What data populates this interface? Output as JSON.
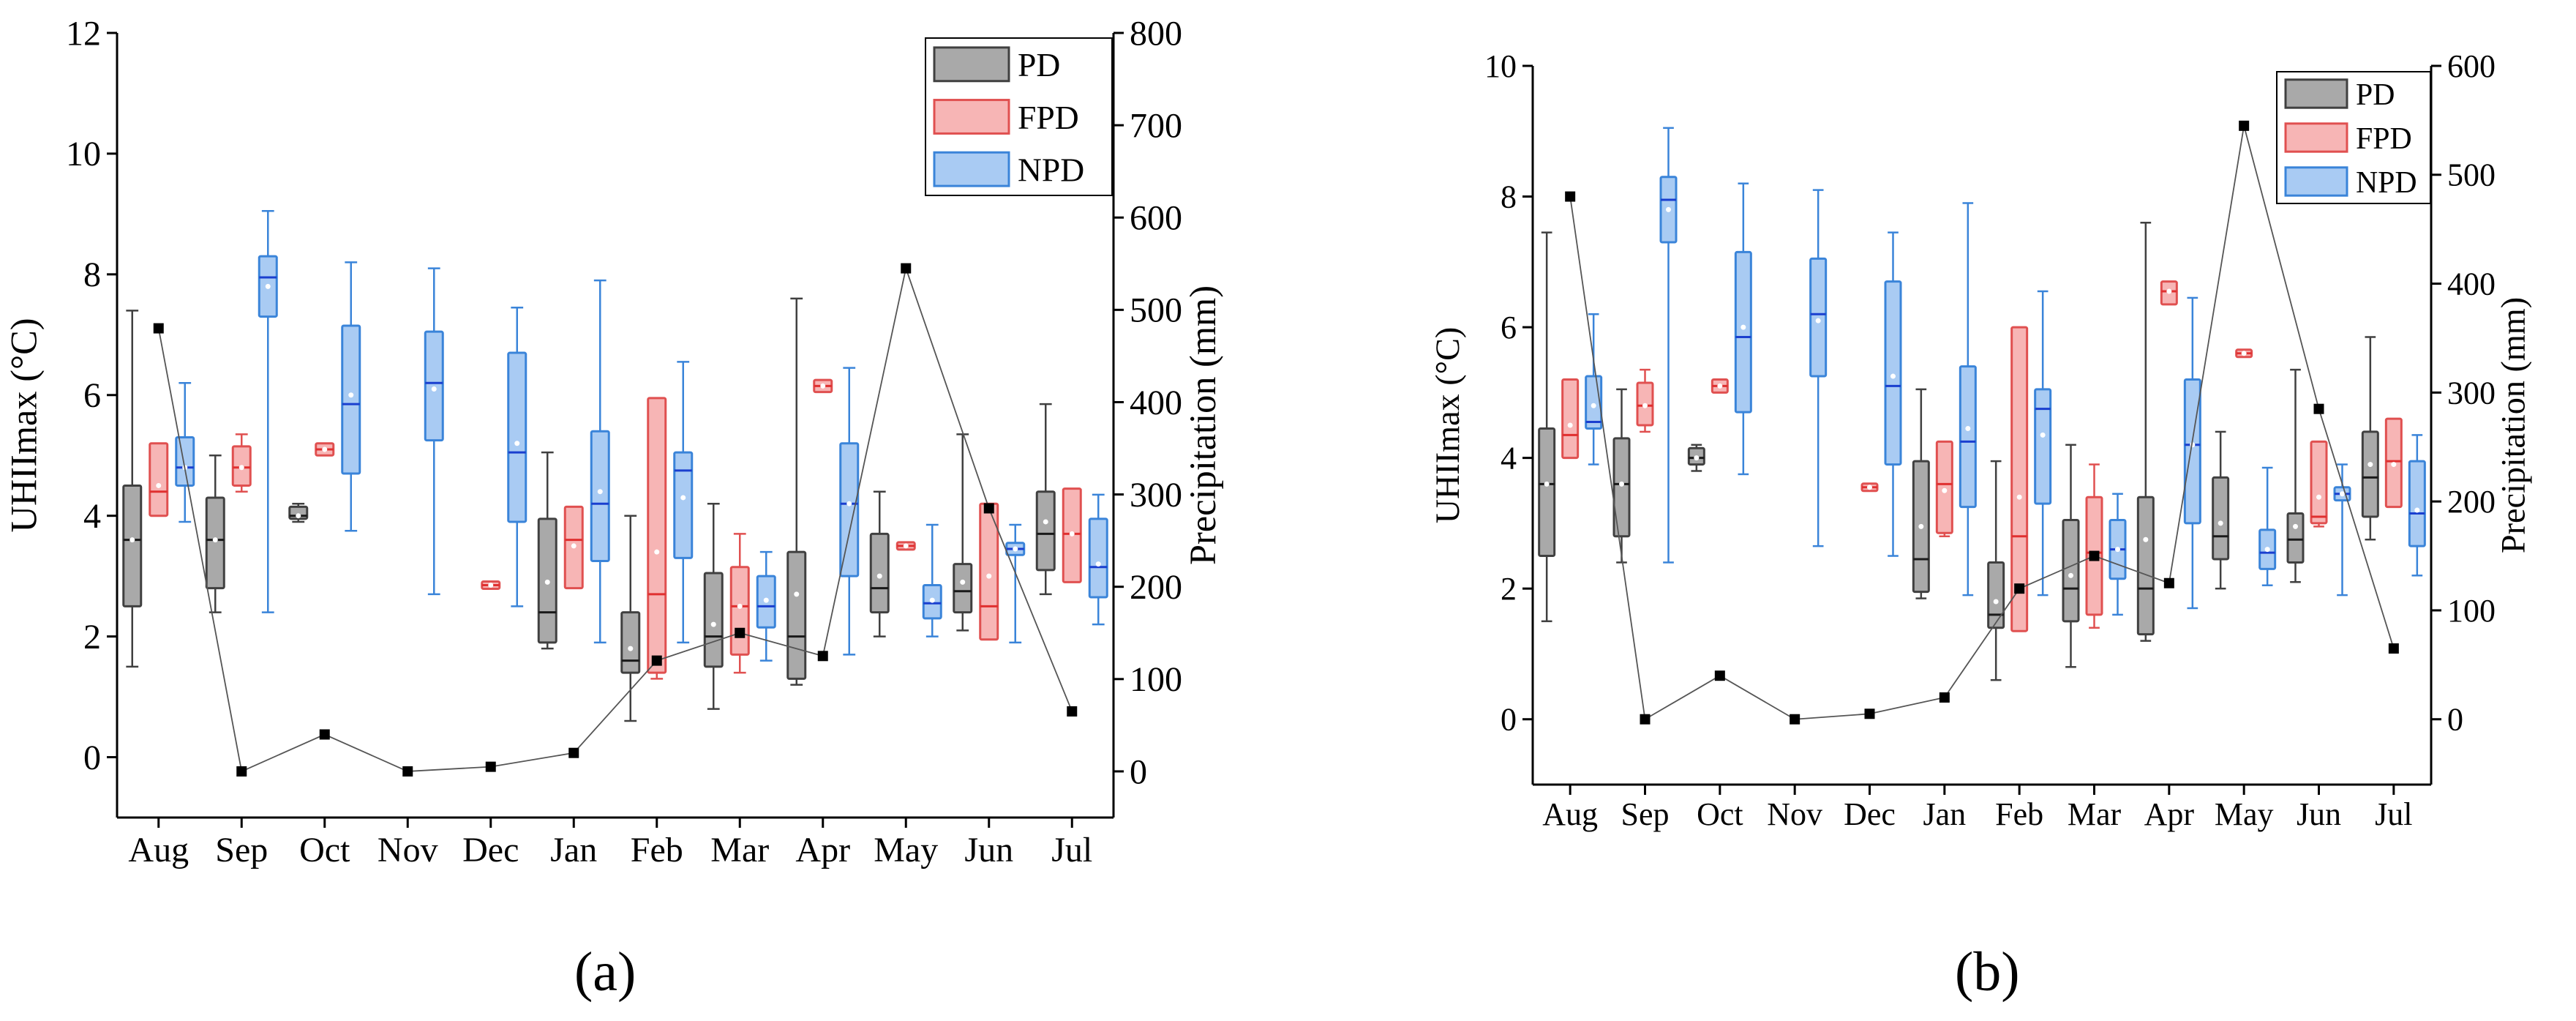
{
  "colors": {
    "PD": {
      "fill": "#a9a9a9",
      "stroke": "#404040",
      "median": "#1a1a1a"
    },
    "FPD": {
      "fill": "#f7b5b5",
      "stroke": "#e05050",
      "median": "#e03030"
    },
    "NPD": {
      "fill": "#a9cbf3",
      "stroke": "#3a84d9",
      "median": "#1a3fcf"
    }
  },
  "panel_labels": {
    "a": "(a)",
    "b": "(b)"
  },
  "chart_data": [
    {
      "type": "box",
      "panel": "a",
      "ylabel": "UHIImax (°C)",
      "y2label": "Precipitation (mm)",
      "ylim": [
        -1,
        12
      ],
      "y2lim": [
        -50,
        800
      ],
      "yticks": [
        0,
        2,
        4,
        6,
        8,
        10,
        12
      ],
      "y2ticks": [
        0,
        100,
        200,
        300,
        400,
        500,
        600,
        700,
        800
      ],
      "categories": [
        "Aug",
        "Sep",
        "Oct",
        "Nov",
        "Dec",
        "Jan",
        "Feb",
        "Mar",
        "Apr",
        "May",
        "Jun",
        "Jul"
      ],
      "legend": [
        "PD",
        "FPD",
        "NPD"
      ],
      "series": [
        {
          "name": "PD",
          "values": [
            {
              "min": 1.5,
              "q1": 2.5,
              "med": 3.6,
              "q3": 4.5,
              "max": 7.4,
              "mean": 3.6
            },
            {
              "min": 2.4,
              "q1": 2.8,
              "med": 3.6,
              "q3": 4.3,
              "max": 5.0,
              "mean": 3.6
            },
            {
              "min": 3.9,
              "q1": 3.95,
              "med": 4.0,
              "q3": 4.15,
              "max": 4.2,
              "mean": 4.0
            },
            null,
            null,
            {
              "min": 1.8,
              "q1": 1.9,
              "med": 2.4,
              "q3": 3.95,
              "max": 5.05,
              "mean": 2.9
            },
            {
              "min": 0.6,
              "q1": 1.4,
              "med": 1.6,
              "q3": 2.4,
              "max": 4.0,
              "mean": 1.8
            },
            {
              "min": 0.8,
              "q1": 1.5,
              "med": 2.0,
              "q3": 3.05,
              "max": 4.2,
              "mean": 2.2
            },
            {
              "min": 1.2,
              "q1": 1.3,
              "med": 2.0,
              "q3": 3.4,
              "max": 7.6,
              "mean": 2.7
            },
            {
              "min": 2.0,
              "q1": 2.4,
              "med": 2.8,
              "q3": 3.7,
              "max": 4.4,
              "mean": 3.0
            },
            {
              "min": 2.1,
              "q1": 2.4,
              "med": 2.75,
              "q3": 3.2,
              "max": 5.35,
              "mean": 2.9
            },
            {
              "min": 2.7,
              "q1": 3.1,
              "med": 3.7,
              "q3": 4.4,
              "max": 5.85,
              "mean": 3.9
            }
          ]
        },
        {
          "name": "FPD",
          "values": [
            {
              "min": 4.0,
              "q1": 4.0,
              "med": 4.4,
              "q3": 5.2,
              "max": 5.2,
              "mean": 4.5
            },
            {
              "min": 4.4,
              "q1": 4.5,
              "med": 4.8,
              "q3": 5.15,
              "max": 5.35,
              "mean": 4.8
            },
            {
              "min": 5.0,
              "q1": 5.0,
              "med": 5.1,
              "q3": 5.2,
              "max": 5.2,
              "mean": 5.1
            },
            null,
            {
              "min": 2.85,
              "q1": 2.85,
              "med": 2.85,
              "q3": 2.85,
              "max": 2.85,
              "mean": 2.85
            },
            {
              "min": 2.8,
              "q1": 2.8,
              "med": 3.6,
              "q3": 4.15,
              "max": 4.15,
              "mean": 3.5
            },
            {
              "min": 1.3,
              "q1": 1.4,
              "med": 2.7,
              "q3": 5.95,
              "max": 5.95,
              "mean": 3.4
            },
            {
              "min": 1.4,
              "q1": 1.7,
              "med": 2.5,
              "q3": 3.15,
              "max": 3.7,
              "mean": 2.5
            },
            {
              "min": 6.05,
              "q1": 6.05,
              "med": 6.15,
              "q3": 6.25,
              "max": 6.25,
              "mean": 6.15
            },
            {
              "min": 3.5,
              "q1": 3.5,
              "med": 3.5,
              "q3": 3.5,
              "max": 3.5,
              "mean": 3.5
            },
            {
              "min": 1.95,
              "q1": 1.95,
              "med": 2.5,
              "q3": 4.2,
              "max": 4.2,
              "mean": 3.0
            },
            {
              "min": 2.9,
              "q1": 2.9,
              "med": 3.7,
              "q3": 4.45,
              "max": 4.45,
              "mean": 3.7
            }
          ]
        },
        {
          "name": "NPD",
          "values": [
            {
              "min": 3.9,
              "q1": 4.5,
              "med": 4.8,
              "q3": 5.3,
              "max": 6.2,
              "mean": 4.8
            },
            {
              "min": 2.4,
              "q1": 7.3,
              "med": 7.95,
              "q3": 8.3,
              "max": 9.05,
              "mean": 7.8
            },
            {
              "min": 3.75,
              "q1": 4.7,
              "med": 5.85,
              "q3": 7.15,
              "max": 8.2,
              "mean": 6.0
            },
            {
              "min": 2.7,
              "q1": 5.25,
              "med": 6.2,
              "q3": 7.05,
              "max": 8.1,
              "mean": 6.1
            },
            {
              "min": 2.5,
              "q1": 3.9,
              "med": 5.05,
              "q3": 6.7,
              "max": 7.45,
              "mean": 5.2
            },
            {
              "min": 1.9,
              "q1": 3.25,
              "med": 4.2,
              "q3": 5.4,
              "max": 7.9,
              "mean": 4.4
            },
            {
              "min": 1.9,
              "q1": 3.3,
              "med": 4.75,
              "q3": 5.05,
              "max": 6.55,
              "mean": 4.3
            },
            {
              "min": 1.6,
              "q1": 2.15,
              "med": 2.5,
              "q3": 3.0,
              "max": 3.4,
              "mean": 2.6
            },
            {
              "min": 1.7,
              "q1": 3.0,
              "med": 4.2,
              "q3": 5.2,
              "max": 6.45,
              "mean": 4.2
            },
            {
              "min": 2.0,
              "q1": 2.3,
              "med": 2.55,
              "q3": 2.85,
              "max": 3.85,
              "mean": 2.6
            },
            {
              "min": 1.9,
              "q1": 3.35,
              "med": 3.45,
              "q3": 3.55,
              "max": 3.85,
              "mean": 3.45
            },
            {
              "min": 2.2,
              "q1": 2.65,
              "med": 3.15,
              "q3": 3.95,
              "max": 4.35,
              "mean": 3.2
            }
          ]
        }
      ],
      "precipitation": {
        "name": "Precipitation",
        "axis": "y2",
        "values": [
          480,
          0,
          40,
          0,
          5,
          20,
          120,
          150,
          125,
          545,
          285,
          65
        ]
      }
    },
    {
      "type": "box",
      "panel": "b",
      "ylabel": "UHIImax (°C)",
      "y2label": "Precipitation (mm)",
      "ylim": [
        -1,
        10
      ],
      "y2lim": [
        -60,
        600
      ],
      "yticks": [
        0,
        2,
        4,
        6,
        8,
        10
      ],
      "y2ticks": [
        0,
        100,
        200,
        300,
        400,
        500,
        600
      ],
      "categories": [
        "Aug",
        "Sep",
        "Oct",
        "Nov",
        "Dec",
        "Jan",
        "Feb",
        "Mar",
        "Apr",
        "May",
        "Jun",
        "Jul"
      ],
      "legend": [
        "PD",
        "FPD",
        "NPD"
      ],
      "series": [
        {
          "name": "PD",
          "values": [
            {
              "min": 1.5,
              "q1": 2.5,
              "med": 3.6,
              "q3": 4.45,
              "max": 7.45,
              "mean": 3.6
            },
            {
              "min": 2.4,
              "q1": 2.8,
              "med": 3.6,
              "q3": 4.3,
              "max": 5.05,
              "mean": 3.6
            },
            {
              "min": 3.8,
              "q1": 3.9,
              "med": 4.0,
              "q3": 4.15,
              "max": 4.2,
              "mean": 4.0
            },
            null,
            null,
            {
              "min": 1.85,
              "q1": 1.95,
              "med": 2.45,
              "q3": 3.95,
              "max": 5.05,
              "mean": 2.95
            },
            {
              "min": 0.6,
              "q1": 1.4,
              "med": 1.6,
              "q3": 2.4,
              "max": 3.95,
              "mean": 1.8
            },
            {
              "min": 0.8,
              "q1": 1.5,
              "med": 2.0,
              "q3": 3.05,
              "max": 4.2,
              "mean": 2.2
            },
            {
              "min": 1.2,
              "q1": 1.3,
              "med": 2.0,
              "q3": 3.4,
              "max": 7.6,
              "mean": 2.75
            },
            {
              "min": 2.0,
              "q1": 2.45,
              "med": 2.8,
              "q3": 3.7,
              "max": 4.4,
              "mean": 3.0
            },
            {
              "min": 2.1,
              "q1": 2.4,
              "med": 2.75,
              "q3": 3.15,
              "max": 5.35,
              "mean": 2.95
            },
            {
              "min": 2.75,
              "q1": 3.1,
              "med": 3.7,
              "q3": 4.4,
              "max": 5.85,
              "mean": 3.9
            }
          ]
        },
        {
          "name": "FPD",
          "values": [
            {
              "min": 4.0,
              "q1": 4.0,
              "med": 4.35,
              "q3": 5.2,
              "max": 5.2,
              "mean": 4.5
            },
            {
              "min": 4.4,
              "q1": 4.5,
              "med": 4.8,
              "q3": 5.15,
              "max": 5.35,
              "mean": 4.8
            },
            {
              "min": 5.0,
              "q1": 5.0,
              "med": 5.1,
              "q3": 5.2,
              "max": 5.2,
              "mean": 5.1
            },
            null,
            {
              "min": 3.55,
              "q1": 3.55,
              "med": 3.55,
              "q3": 3.55,
              "max": 3.55,
              "mean": 3.55
            },
            {
              "min": 2.8,
              "q1": 2.85,
              "med": 3.6,
              "q3": 4.25,
              "max": 4.25,
              "mean": 3.5
            },
            {
              "min": 1.35,
              "q1": 1.35,
              "med": 2.8,
              "q3": 6.0,
              "max": 6.0,
              "mean": 3.4
            },
            {
              "min": 1.4,
              "q1": 1.6,
              "med": 2.55,
              "q3": 3.4,
              "max": 3.9,
              "mean": 2.5
            },
            {
              "min": 6.35,
              "q1": 6.35,
              "med": 6.55,
              "q3": 6.7,
              "max": 6.7,
              "mean": 6.55
            },
            {
              "min": 5.6,
              "q1": 5.6,
              "med": 5.6,
              "q3": 5.6,
              "max": 5.6,
              "mean": 5.6
            },
            {
              "min": 2.95,
              "q1": 3.0,
              "med": 3.1,
              "q3": 4.25,
              "max": 4.25,
              "mean": 3.4
            },
            {
              "min": 3.25,
              "q1": 3.25,
              "med": 3.95,
              "q3": 4.6,
              "max": 4.6,
              "mean": 3.9
            }
          ]
        },
        {
          "name": "NPD",
          "values": [
            {
              "min": 3.9,
              "q1": 4.45,
              "med": 4.55,
              "q3": 5.25,
              "max": 6.2,
              "mean": 4.8
            },
            {
              "min": 2.4,
              "q1": 7.3,
              "med": 7.95,
              "q3": 8.3,
              "max": 9.05,
              "mean": 7.8
            },
            {
              "min": 3.75,
              "q1": 4.7,
              "med": 5.85,
              "q3": 7.15,
              "max": 8.2,
              "mean": 6.0
            },
            {
              "min": 2.65,
              "q1": 5.25,
              "med": 6.2,
              "q3": 7.05,
              "max": 8.1,
              "mean": 6.1
            },
            {
              "min": 2.5,
              "q1": 3.9,
              "med": 5.1,
              "q3": 6.7,
              "max": 7.45,
              "mean": 5.25
            },
            {
              "min": 1.9,
              "q1": 3.25,
              "med": 4.25,
              "q3": 5.4,
              "max": 7.9,
              "mean": 4.45
            },
            {
              "min": 1.9,
              "q1": 3.3,
              "med": 4.75,
              "q3": 5.05,
              "max": 6.55,
              "mean": 4.35
            },
            {
              "min": 1.6,
              "q1": 2.15,
              "med": 2.6,
              "q3": 3.05,
              "max": 3.45,
              "mean": 2.6
            },
            {
              "min": 1.7,
              "q1": 3.0,
              "med": 4.2,
              "q3": 5.2,
              "max": 6.45,
              "mean": 4.2
            },
            {
              "min": 2.05,
              "q1": 2.3,
              "med": 2.55,
              "q3": 2.9,
              "max": 3.85,
              "mean": 2.6
            },
            {
              "min": 1.9,
              "q1": 3.35,
              "med": 3.45,
              "q3": 3.55,
              "max": 3.9,
              "mean": 3.45
            },
            {
              "min": 2.2,
              "q1": 2.65,
              "med": 3.15,
              "q3": 3.95,
              "max": 4.35,
              "mean": 3.2
            }
          ]
        }
      ],
      "precipitation": {
        "name": "Precipitation",
        "axis": "y2",
        "values": [
          480,
          0,
          40,
          0,
          5,
          20,
          120,
          150,
          125,
          545,
          285,
          65
        ]
      }
    }
  ]
}
